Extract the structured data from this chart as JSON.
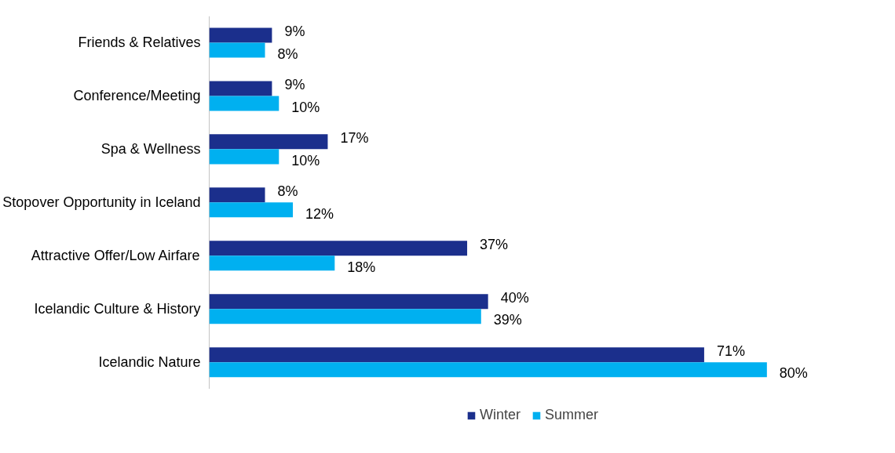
{
  "chart_data": {
    "type": "bar",
    "orientation": "horizontal",
    "categories": [
      "Friends & Relatives",
      "Conference/Meeting",
      "Spa & Wellness",
      "Stopover Opportunity in Iceland",
      "Attractive Offer/Low Airfare",
      "Icelandic Culture & History",
      "Icelandic Nature"
    ],
    "series": [
      {
        "name": "Winter",
        "color": "#1b2f8c",
        "values": [
          9,
          9,
          17,
          8,
          37,
          40,
          71
        ],
        "value_labels": [
          "9%",
          "9%",
          "17%",
          "8%",
          "37%",
          "40%",
          "71%"
        ]
      },
      {
        "name": "Summer",
        "color": "#00b0f0",
        "values": [
          8,
          10,
          10,
          12,
          18,
          39,
          80
        ],
        "value_labels": [
          "8%",
          "10%",
          "10%",
          "12%",
          "18%",
          "39%",
          "80%"
        ]
      }
    ],
    "tick_labels": "y",
    "grid": false,
    "legend": "bottom"
  }
}
